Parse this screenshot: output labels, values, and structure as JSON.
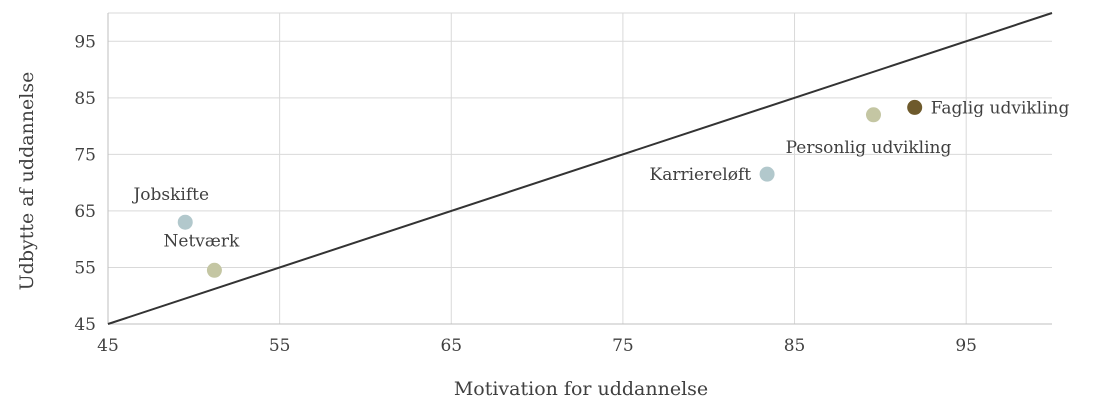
{
  "chart_data": {
    "type": "scatter",
    "title": "",
    "xlabel": "Motivation for uddannelse",
    "ylabel": "Udbytte af uddannelse",
    "xlim": [
      45,
      100
    ],
    "ylim": [
      45,
      100
    ],
    "x_ticks": [
      45,
      55,
      65,
      75,
      85,
      95
    ],
    "y_ticks": [
      45,
      55,
      65,
      75,
      85,
      95
    ],
    "grid": true,
    "reference_line": {
      "from": [
        45,
        45
      ],
      "to": [
        100,
        100
      ],
      "color": "#333333"
    },
    "points": [
      {
        "label": "Jobskifte",
        "x": 49.5,
        "y": 63,
        "color": "#b2c8cc",
        "label_position": "above-left"
      },
      {
        "label": "Netværk",
        "x": 51.2,
        "y": 54.5,
        "color": "#c4c6a3",
        "label_position": "above"
      },
      {
        "label": "Karriereløft",
        "x": 83.4,
        "y": 71.5,
        "color": "#b2c8cc",
        "label_position": "left"
      },
      {
        "label": "Personlig udvikling",
        "x": 89.6,
        "y": 82,
        "color": "#c4c6a3",
        "label_position": "below"
      },
      {
        "label": "Faglig udvikling",
        "x": 92,
        "y": 83.3,
        "color": "#6e5a2c",
        "label_position": "right"
      }
    ]
  }
}
